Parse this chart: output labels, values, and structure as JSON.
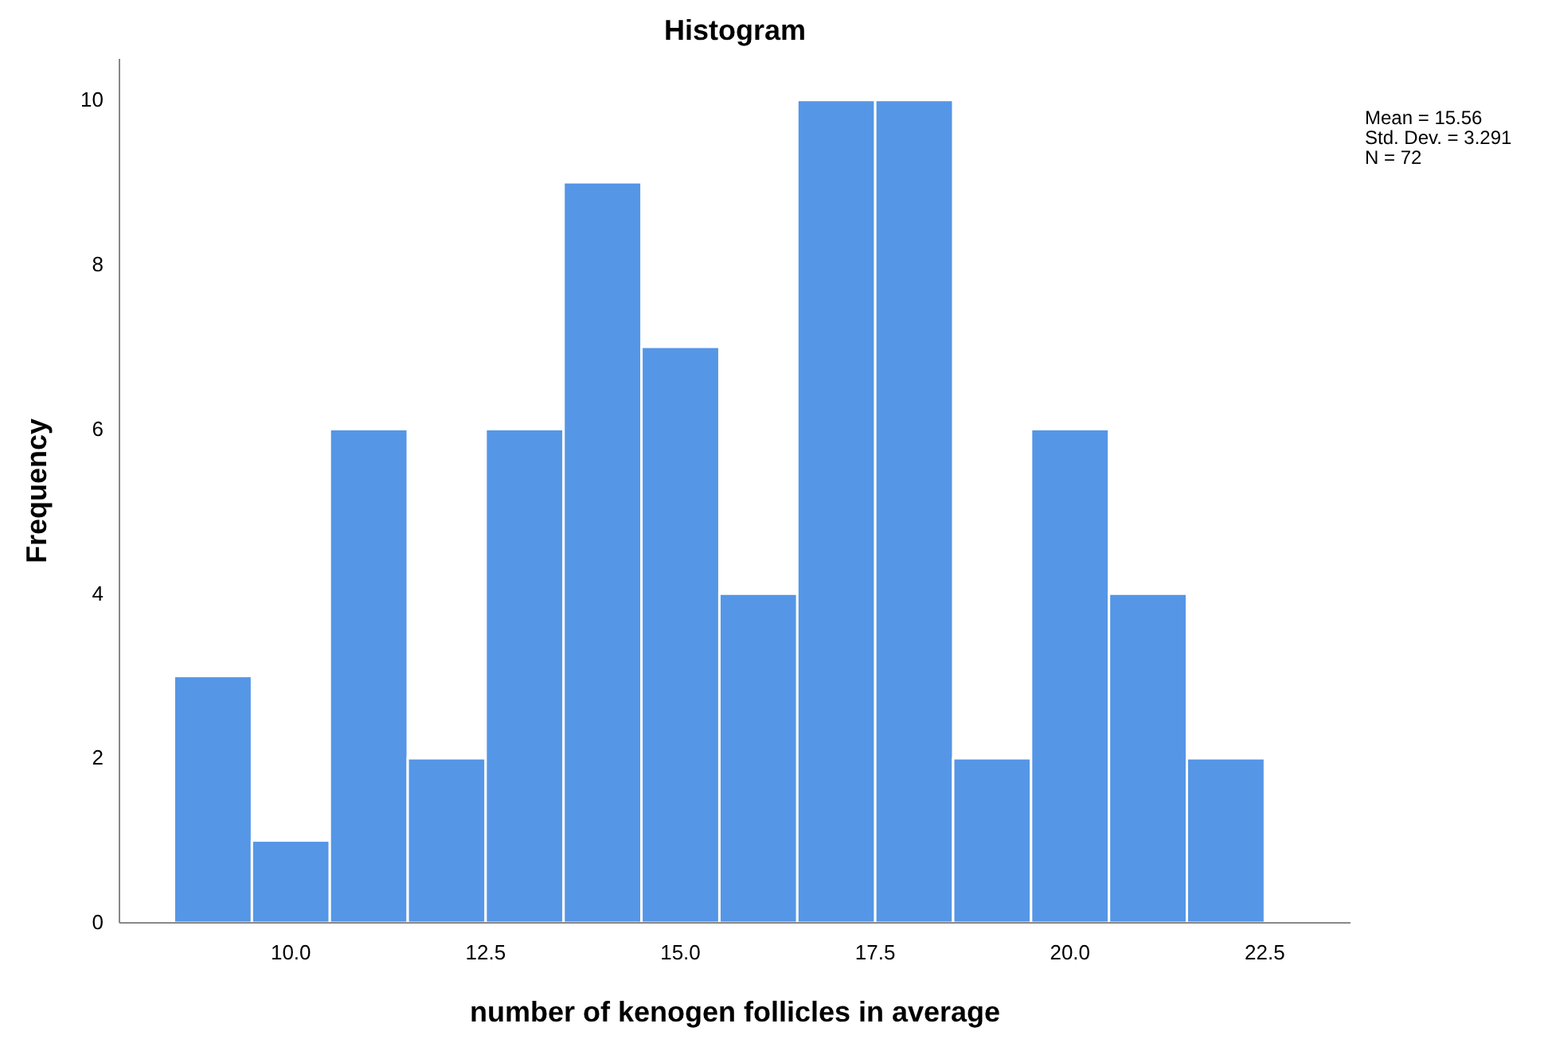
{
  "chart_data": {
    "type": "histogram",
    "title": "Histogram",
    "xlabel": "number of kenogen follicles in  average",
    "ylabel": "Frequency",
    "bins": [
      8.5,
      9.5,
      10.5,
      11.5,
      12.5,
      13.5,
      14.5,
      15.5,
      16.5,
      17.5,
      18.5,
      19.5,
      20.5,
      21.5,
      22.5
    ],
    "values": [
      3,
      1,
      6,
      2,
      6,
      9,
      7,
      4,
      10,
      10,
      2,
      6,
      4,
      2
    ],
    "color": "#5596e6",
    "xlim": [
      7.8,
      23.6
    ],
    "xticks": [
      {
        "value": 10,
        "label": "10.0"
      },
      12.5,
      {
        "value": 15,
        "label": "15.0"
      },
      17.5,
      {
        "value": 20,
        "label": "20.0"
      },
      22.5
    ],
    "ylim": [
      0,
      10.5
    ],
    "yticks": [
      0,
      2,
      4,
      6,
      8,
      10
    ],
    "annotations": [
      "Mean = 15.56",
      "Std. Dev. = 3.291",
      "N = 72"
    ]
  }
}
